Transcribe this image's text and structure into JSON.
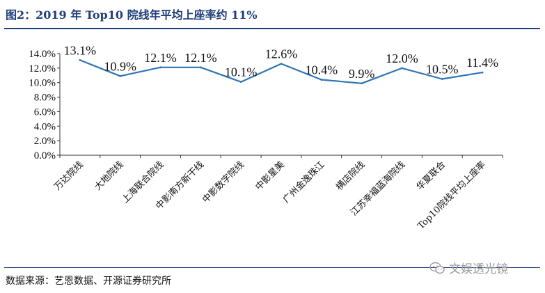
{
  "header": {
    "title": "图2：2019 年 Top10 院线年平均上座率约 11%"
  },
  "footer": {
    "source": "数据来源：艺恩数据、开源证券研究所"
  },
  "watermark": {
    "icon": "wechat-icon",
    "text": "文娱透光镜"
  },
  "colors": {
    "line": "#2e75b6",
    "title": "#1f3d7a",
    "rule": "#1f3d7a"
  },
  "chart_data": {
    "type": "line",
    "title": "",
    "xlabel": "",
    "ylabel": "",
    "ylim": [
      0,
      14
    ],
    "yticks": [
      0,
      2,
      4,
      6,
      8,
      10,
      12,
      14
    ],
    "ytick_labels": [
      "0.0%",
      "2.0%",
      "4.0%",
      "6.0%",
      "8.0%",
      "10.0%",
      "12.0%",
      "14.0%"
    ],
    "grid": false,
    "legend": "none",
    "categories": [
      "万达院线",
      "大地院线",
      "上海联合院线",
      "中影南方新干线",
      "中影数字院线",
      "中影星美",
      "广州金逸珠江",
      "横店院线",
      "江苏幸福蓝海院线",
      "华夏联合",
      "Top10院线平均上座率"
    ],
    "series": [
      {
        "values": [
          13.1,
          10.9,
          12.1,
          12.1,
          10.1,
          12.6,
          10.4,
          9.9,
          12.0,
          10.5,
          11.4
        ],
        "data_labels": [
          "13.1%",
          "10.9%",
          "12.1%",
          "12.1%",
          "10.1%",
          "12.6%",
          "10.4%",
          "9.9%",
          "12.0%",
          "10.5%",
          "11.4%"
        ]
      }
    ]
  }
}
